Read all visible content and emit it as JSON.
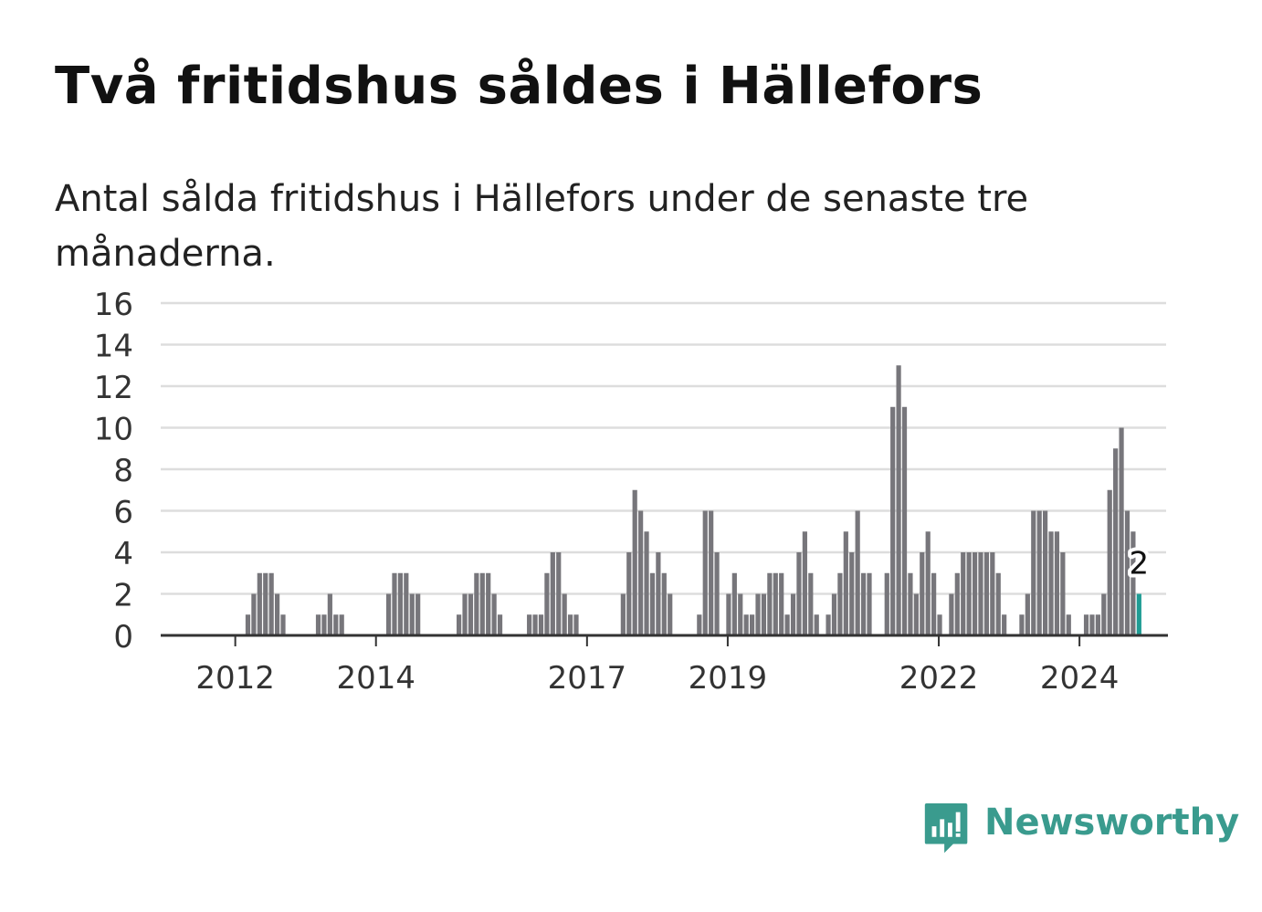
{
  "title": "Två fritidshus såldes i Hällefors",
  "subtitle": "Antal sålda fritidshus i Hällefors under de senaste tre månaderna.",
  "brand": {
    "name": "Newsworthy",
    "icon": "newsworthy-logo-icon",
    "color": "#3a9b8e"
  },
  "colors": {
    "bar": "#77767b",
    "highlight": "#1f9c94",
    "grid": "#dddddd",
    "axis": "#333333",
    "text": "#333333"
  },
  "chart_data": {
    "type": "bar",
    "start": "2011-01",
    "frequency": "monthly",
    "ylim": [
      0,
      16
    ],
    "yticks": [
      0,
      2,
      4,
      6,
      8,
      10,
      12,
      14,
      16
    ],
    "xtick_labels": [
      "2012",
      "2014",
      "2017",
      "2019",
      "2022",
      "2024"
    ],
    "grid": true,
    "annotation": {
      "label": "2",
      "value": 2
    },
    "values": [
      0,
      0,
      0,
      0,
      0,
      0,
      0,
      0,
      0,
      0,
      0,
      0,
      0,
      0,
      1,
      2,
      3,
      3,
      3,
      2,
      1,
      0,
      0,
      0,
      0,
      0,
      1,
      1,
      2,
      1,
      1,
      0,
      0,
      0,
      0,
      0,
      0,
      0,
      2,
      3,
      3,
      3,
      2,
      2,
      0,
      0,
      0,
      0,
      0,
      0,
      1,
      2,
      2,
      3,
      3,
      3,
      2,
      1,
      0,
      0,
      0,
      0,
      1,
      1,
      1,
      3,
      4,
      4,
      2,
      1,
      1,
      0,
      0,
      0,
      0,
      0,
      0,
      0,
      2,
      4,
      7,
      6,
      5,
      3,
      4,
      3,
      2,
      0,
      0,
      0,
      0,
      1,
      6,
      6,
      4,
      0,
      2,
      3,
      2,
      1,
      1,
      2,
      2,
      3,
      3,
      3,
      1,
      2,
      4,
      5,
      3,
      1,
      0,
      1,
      2,
      3,
      5,
      4,
      6,
      3,
      3,
      0,
      0,
      3,
      11,
      13,
      11,
      3,
      2,
      4,
      5,
      3,
      1,
      0,
      2,
      3,
      4,
      4,
      4,
      4,
      4,
      4,
      3,
      1,
      0,
      0,
      1,
      2,
      6,
      6,
      6,
      5,
      5,
      4,
      1,
      0,
      0,
      1,
      1,
      1,
      2,
      7,
      9,
      10,
      6,
      5,
      2
    ]
  }
}
